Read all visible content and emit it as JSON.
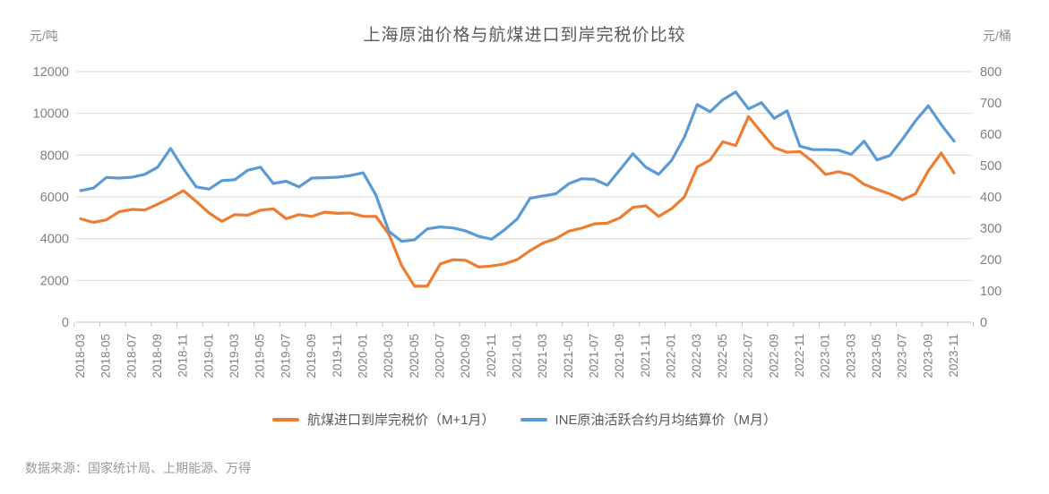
{
  "title": "上海原油价格与航煤进口到岸完税价比较",
  "left_axis_unit": "元/吨",
  "right_axis_unit": "元/桶",
  "footer": "数据来源：国家统计局、上期能源、万得",
  "colors": {
    "jet_fuel_orange": "#ED7D31",
    "ine_crude_blue": "#5B9BD5",
    "grid": "#d9d9d9",
    "axis_text": "#808080",
    "title_text": "#595959"
  },
  "legend": [
    {
      "label": "航煤进口到岸完税价（M+1月）",
      "color": "#ED7D31"
    },
    {
      "label": "INE原油活跃合约月均结算价（M月）",
      "color": "#5B9BD5"
    }
  ],
  "chart_data": {
    "type": "line",
    "title": "上海原油价格与航煤进口到岸完税价比较",
    "grid": true,
    "legend_position": "bottom",
    "x_label_step": 2,
    "x": [
      "2018-03",
      "2018-04",
      "2018-05",
      "2018-06",
      "2018-07",
      "2018-08",
      "2018-09",
      "2018-10",
      "2018-11",
      "2018-12",
      "2019-01",
      "2019-02",
      "2019-03",
      "2019-04",
      "2019-05",
      "2019-06",
      "2019-07",
      "2019-08",
      "2019-09",
      "2019-10",
      "2019-11",
      "2019-12",
      "2020-01",
      "2020-02",
      "2020-03",
      "2020-04",
      "2020-05",
      "2020-06",
      "2020-07",
      "2020-08",
      "2020-09",
      "2020-10",
      "2020-11",
      "2020-12",
      "2021-01",
      "2021-02",
      "2021-03",
      "2021-04",
      "2021-05",
      "2021-06",
      "2021-07",
      "2021-08",
      "2021-09",
      "2021-10",
      "2021-11",
      "2021-12",
      "2022-01",
      "2022-02",
      "2022-03",
      "2022-04",
      "2022-05",
      "2022-06",
      "2022-07",
      "2022-08",
      "2022-09",
      "2022-10",
      "2022-11",
      "2022-12",
      "2023-01",
      "2023-02",
      "2023-03",
      "2023-04",
      "2023-05",
      "2023-06",
      "2023-07",
      "2023-08",
      "2023-09",
      "2023-10",
      "2023-11"
    ],
    "left_axis": {
      "unit": "元/吨",
      "min": 0,
      "max": 12000,
      "step": 2000
    },
    "right_axis": {
      "unit": "元/桶",
      "min": 0,
      "max": 800,
      "step": 100
    },
    "series": [
      {
        "name": "航煤进口到岸完税价（M+1月）",
        "axis": "left",
        "color": "#ED7D31",
        "values": [
          4950,
          4780,
          4900,
          5290,
          5400,
          5370,
          5650,
          5950,
          6300,
          5780,
          5230,
          4830,
          5150,
          5120,
          5360,
          5430,
          4960,
          5150,
          5060,
          5270,
          5210,
          5230,
          5070,
          5060,
          4210,
          2700,
          1720,
          1730,
          2790,
          2990,
          2960,
          2640,
          2690,
          2790,
          3000,
          3430,
          3790,
          4000,
          4360,
          4500,
          4710,
          4740,
          5000,
          5500,
          5570,
          5070,
          5430,
          5990,
          7430,
          7760,
          8640,
          8460,
          9850,
          9100,
          8360,
          8140,
          8170,
          7690,
          7070,
          7210,
          7050,
          6600,
          6360,
          6140,
          5860,
          6150,
          7250,
          8100,
          7150
        ]
      },
      {
        "name": "INE原油活跃合约月均结算价（M月）",
        "axis": "right",
        "color": "#5B9BD5",
        "values": [
          420,
          428,
          462,
          460,
          463,
          472,
          495,
          555,
          490,
          432,
          425,
          452,
          455,
          485,
          495,
          443,
          450,
          432,
          460,
          461,
          463,
          468,
          477,
          405,
          290,
          258,
          263,
          298,
          304,
          301,
          291,
          274,
          265,
          295,
          330,
          396,
          403,
          410,
          442,
          458,
          456,
          437,
          487,
          538,
          495,
          472,
          516,
          590,
          695,
          672,
          710,
          735,
          681,
          701,
          651,
          675,
          562,
          551,
          551,
          549,
          536,
          578,
          518,
          532,
          585,
          643,
          691,
          631,
          578
        ]
      }
    ]
  }
}
